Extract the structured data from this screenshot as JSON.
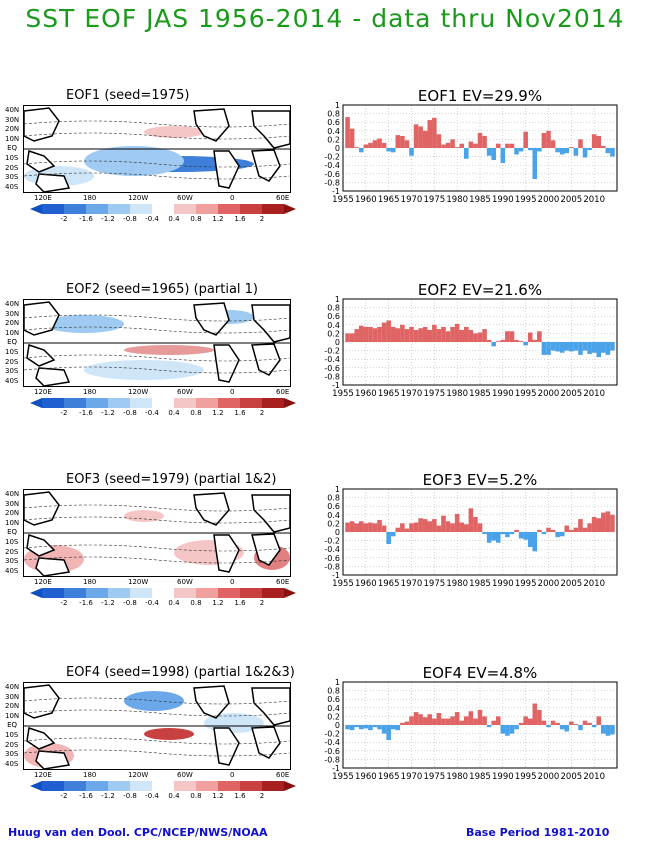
{
  "title": "SST EOF JAS 1956-2014 - data thru Nov2014",
  "footer_left": "Huug van den Dool. CPC/NCEP/NWS/NOAA",
  "footer_right": "Base Period 1981-2010",
  "map_lat_labels": [
    "40N",
    "30N",
    "20N",
    "10N",
    "EQ",
    "10S",
    "20S",
    "30S",
    "40S"
  ],
  "map_lon_labels": [
    "120E",
    "180",
    "120W",
    "60W",
    "0",
    "60E"
  ],
  "colorbar_labels": [
    "-2",
    "-1.6",
    "-1.2",
    "-0.8",
    "-0.4",
    "0.4",
    "0.8",
    "1.2",
    "1.6",
    "2"
  ],
  "colors": {
    "title": "#1a9a1a",
    "positive": "#e06464",
    "negative": "#4aa3e8",
    "footer": "#1010cc"
  },
  "panels": [
    {
      "map_title": "EOF1  (seed=1975)",
      "ts_title": "EOF1   EV=29.9%"
    },
    {
      "map_title": "EOF2  (seed=1965) (partial 1)",
      "ts_title": "EOF2   EV=21.6%"
    },
    {
      "map_title": "EOF3  (seed=1979) (partial 1&2)",
      "ts_title": "EOF3   EV=5.2%"
    },
    {
      "map_title": "EOF4  (seed=1998) (partial 1&2&3)",
      "ts_title": "EOF4   EV=4.8%"
    }
  ],
  "chart_data": [
    {
      "type": "bar",
      "title": "EOF1   EV=29.9%",
      "x_tick_labels": [
        "1955",
        "1960",
        "1965",
        "1970",
        "1975",
        "1980",
        "1985",
        "1990",
        "1995",
        "2000",
        "2005",
        "2010"
      ],
      "y_tick_labels": [
        "1",
        "0.8",
        "0.6",
        "0.4",
        "0.2",
        "0",
        "-0.2",
        "-0.4",
        "-0.6",
        "-0.8",
        "-1"
      ],
      "ylim": [
        -1,
        1
      ],
      "grid": true,
      "x": [
        1956,
        1957,
        1958,
        1959,
        1960,
        1961,
        1962,
        1963,
        1964,
        1965,
        1966,
        1967,
        1968,
        1969,
        1970,
        1971,
        1972,
        1973,
        1974,
        1975,
        1976,
        1977,
        1978,
        1979,
        1980,
        1981,
        1982,
        1983,
        1984,
        1985,
        1986,
        1987,
        1988,
        1989,
        1990,
        1991,
        1992,
        1993,
        1994,
        1995,
        1996,
        1997,
        1998,
        1999,
        2000,
        2001,
        2002,
        2003,
        2004,
        2005,
        2006,
        2007,
        2008,
        2009,
        2010,
        2011,
        2012,
        2013,
        2014
      ],
      "values": [
        0.72,
        0.45,
        0.02,
        -0.1,
        0.08,
        0.12,
        0.18,
        0.22,
        0.12,
        -0.08,
        -0.1,
        0.3,
        0.28,
        0.18,
        -0.18,
        0.55,
        0.5,
        0.4,
        0.65,
        0.7,
        0.32,
        0.08,
        0.12,
        0.2,
        0.02,
        0.1,
        -0.25,
        0.15,
        0.1,
        0.35,
        0.28,
        -0.18,
        -0.28,
        0.1,
        -0.35,
        0.1,
        0.1,
        -0.15,
        -0.08,
        0.38,
        -0.05,
        -0.72,
        -0.08,
        0.35,
        0.4,
        0.18,
        -0.1,
        -0.15,
        -0.12,
        0.02,
        -0.18,
        0.2,
        -0.22,
        -0.05,
        0.32,
        0.28,
        0.05,
        -0.12,
        -0.2
      ]
    },
    {
      "type": "bar",
      "title": "EOF2   EV=21.6%",
      "x_tick_labels": [
        "1955",
        "1960",
        "1965",
        "1970",
        "1975",
        "1980",
        "1985",
        "1990",
        "1995",
        "2000",
        "2005",
        "2010"
      ],
      "y_tick_labels": [
        "1",
        "0.8",
        "0.6",
        "0.4",
        "0.2",
        "0",
        "-0.2",
        "-0.4",
        "-0.6",
        "-0.8",
        "-1"
      ],
      "ylim": [
        -1,
        1
      ],
      "grid": true,
      "x": [
        1956,
        1957,
        1958,
        1959,
        1960,
        1961,
        1962,
        1963,
        1964,
        1965,
        1966,
        1967,
        1968,
        1969,
        1970,
        1971,
        1972,
        1973,
        1974,
        1975,
        1976,
        1977,
        1978,
        1979,
        1980,
        1981,
        1982,
        1983,
        1984,
        1985,
        1986,
        1987,
        1988,
        1989,
        1990,
        1991,
        1992,
        1993,
        1994,
        1995,
        1996,
        1997,
        1998,
        1999,
        2000,
        2001,
        2002,
        2003,
        2004,
        2005,
        2006,
        2007,
        2008,
        2009,
        2010,
        2011,
        2012,
        2013,
        2014
      ],
      "values": [
        0.2,
        0.2,
        0.3,
        0.38,
        0.35,
        0.35,
        0.32,
        0.35,
        0.45,
        0.5,
        0.35,
        0.32,
        0.4,
        0.3,
        0.35,
        0.28,
        0.32,
        0.35,
        0.28,
        0.4,
        0.3,
        0.35,
        0.25,
        0.35,
        0.42,
        0.28,
        0.35,
        0.28,
        0.2,
        0.22,
        0.3,
        0.05,
        -0.1,
        0.02,
        0.05,
        0.25,
        0.25,
        0.05,
        0.02,
        -0.08,
        0.22,
        0.05,
        0.25,
        -0.3,
        -0.3,
        -0.2,
        -0.22,
        -0.25,
        -0.2,
        -0.22,
        -0.2,
        -0.3,
        -0.2,
        -0.28,
        -0.25,
        -0.35,
        -0.25,
        -0.3,
        -0.2
      ]
    },
    {
      "type": "bar",
      "title": "EOF3   EV=5.2%",
      "x_tick_labels": [
        "1955",
        "1960",
        "1965",
        "1970",
        "1975",
        "1980",
        "1985",
        "1990",
        "1995",
        "2000",
        "2005",
        "2010"
      ],
      "y_tick_labels": [
        "1",
        "0.8",
        "0.6",
        "0.4",
        "0.2",
        "0",
        "-0.2",
        "-0.4",
        "-0.6",
        "-0.8",
        "-1"
      ],
      "ylim": [
        -1,
        1
      ],
      "grid": true,
      "x": [
        1956,
        1957,
        1958,
        1959,
        1960,
        1961,
        1962,
        1963,
        1964,
        1965,
        1966,
        1967,
        1968,
        1969,
        1970,
        1971,
        1972,
        1973,
        1974,
        1975,
        1976,
        1977,
        1978,
        1979,
        1980,
        1981,
        1982,
        1983,
        1984,
        1985,
        1986,
        1987,
        1988,
        1989,
        1990,
        1991,
        1992,
        1993,
        1994,
        1995,
        1996,
        1997,
        1998,
        1999,
        2000,
        2001,
        2002,
        2003,
        2004,
        2005,
        2006,
        2007,
        2008,
        2009,
        2010,
        2011,
        2012,
        2013,
        2014
      ],
      "values": [
        0.22,
        0.25,
        0.2,
        0.25,
        0.2,
        0.22,
        0.2,
        0.28,
        0.15,
        -0.28,
        -0.1,
        0.1,
        0.2,
        0.08,
        0.2,
        0.22,
        0.32,
        0.3,
        0.25,
        0.3,
        0.15,
        0.38,
        0.25,
        0.2,
        0.42,
        0.22,
        0.18,
        0.55,
        0.35,
        0.2,
        -0.05,
        -0.25,
        -0.2,
        -0.25,
        -0.05,
        -0.12,
        -0.05,
        0.05,
        -0.15,
        -0.18,
        -0.35,
        -0.45,
        0.05,
        -0.05,
        0.1,
        0.05,
        -0.12,
        -0.1,
        0.15,
        0.05,
        0.1,
        0.3,
        0.1,
        0.2,
        0.35,
        0.32,
        0.45,
        0.48,
        0.4
      ]
    },
    {
      "type": "bar",
      "title": "EOF4   EV=4.8%",
      "x_tick_labels": [
        "1955",
        "1960",
        "1965",
        "1970",
        "1975",
        "1980",
        "1985",
        "1990",
        "1995",
        "2000",
        "2005",
        "2010"
      ],
      "y_tick_labels": [
        "1",
        "0.8",
        "0.6",
        "0.4",
        "0.2",
        "0",
        "-0.2",
        "-0.4",
        "-0.6",
        "-0.8",
        "-1"
      ],
      "ylim": [
        -1,
        1
      ],
      "grid": true,
      "x": [
        1956,
        1957,
        1958,
        1959,
        1960,
        1961,
        1962,
        1963,
        1964,
        1965,
        1966,
        1967,
        1968,
        1969,
        1970,
        1971,
        1972,
        1973,
        1974,
        1975,
        1976,
        1977,
        1978,
        1979,
        1980,
        1981,
        1982,
        1983,
        1984,
        1985,
        1986,
        1987,
        1988,
        1989,
        1990,
        1991,
        1992,
        1993,
        1994,
        1995,
        1996,
        1997,
        1998,
        1999,
        2000,
        2001,
        2002,
        2003,
        2004,
        2005,
        2006,
        2007,
        2008,
        2009,
        2010,
        2011,
        2012,
        2013,
        2014
      ],
      "values": [
        -0.1,
        -0.12,
        -0.05,
        -0.1,
        -0.08,
        -0.12,
        -0.05,
        -0.1,
        -0.2,
        -0.35,
        -0.1,
        -0.12,
        0.05,
        0.08,
        0.2,
        0.3,
        0.25,
        0.18,
        0.25,
        0.15,
        0.28,
        0.15,
        0.15,
        0.2,
        0.3,
        0.1,
        0.2,
        0.32,
        0.15,
        0.35,
        0.2,
        -0.05,
        0.1,
        0.2,
        -0.2,
        -0.25,
        -0.2,
        -0.1,
        0.05,
        0.2,
        0.15,
        0.5,
        0.35,
        0.1,
        -0.05,
        0.1,
        0.05,
        -0.1,
        -0.15,
        0.08,
        0.02,
        -0.12,
        0.1,
        0.05,
        -0.05,
        0.2,
        -0.2,
        -0.25,
        -0.22
      ]
    }
  ]
}
